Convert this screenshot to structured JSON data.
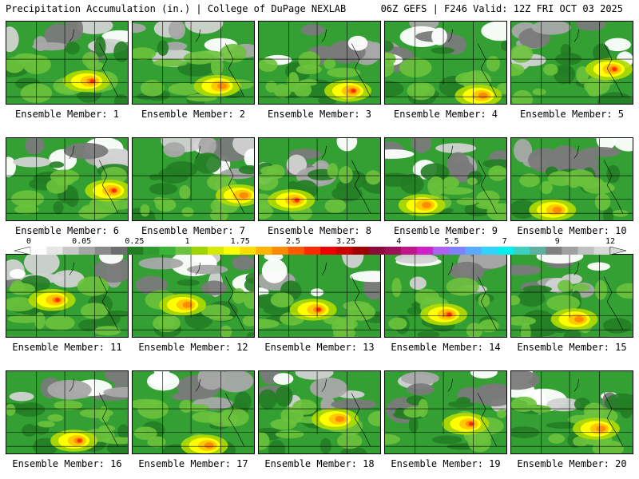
{
  "header": {
    "left": "Precipitation Accumulation (in.) | College of DuPage NEXLAB",
    "right": "06Z GEFS | F246 Valid: 12Z FRI OCT 03 2025"
  },
  "member_label_prefix": "Ensemble Member: ",
  "members": [
    {
      "id": 1,
      "label": "Ensemble Member: 1"
    },
    {
      "id": 2,
      "label": "Ensemble Member: 2"
    },
    {
      "id": 3,
      "label": "Ensemble Member: 3"
    },
    {
      "id": 4,
      "label": "Ensemble Member: 4"
    },
    {
      "id": 5,
      "label": "Ensemble Member: 5"
    },
    {
      "id": 6,
      "label": "Ensemble Member: 6"
    },
    {
      "id": 7,
      "label": "Ensemble Member: 7"
    },
    {
      "id": 8,
      "label": "Ensemble Member: 8"
    },
    {
      "id": 9,
      "label": "Ensemble Member: 9"
    },
    {
      "id": 10,
      "label": "Ensemble Member: 10"
    },
    {
      "id": 11,
      "label": "Ensemble Member: 11"
    },
    {
      "id": 12,
      "label": "Ensemble Member: 12"
    },
    {
      "id": 13,
      "label": "Ensemble Member: 13"
    },
    {
      "id": 14,
      "label": "Ensemble Member: 14"
    },
    {
      "id": 15,
      "label": "Ensemble Member: 15"
    },
    {
      "id": 16,
      "label": "Ensemble Member: 16"
    },
    {
      "id": 17,
      "label": "Ensemble Member: 17"
    },
    {
      "id": 18,
      "label": "Ensemble Member: 18"
    },
    {
      "id": 19,
      "label": "Ensemble Member: 19"
    },
    {
      "id": 20,
      "label": "Ensemble Member: 20"
    }
  ],
  "legend": {
    "ticks": [
      "0",
      "0.05",
      "0.25",
      "1",
      "1.75",
      "2.5",
      "3.25",
      "4",
      "5.5",
      "7",
      "9",
      "12"
    ],
    "colors": [
      "#ffffff",
      "#e6e6e6",
      "#c8c8c8",
      "#a6a6a6",
      "#8a8a8a",
      "#6e6e6e",
      "#227d22",
      "#2f9a2f",
      "#3cb43c",
      "#6cc23c",
      "#9ed400",
      "#d6ea00",
      "#ffff00",
      "#ffdd00",
      "#ffb400",
      "#ff8c00",
      "#ff5a00",
      "#ff2a00",
      "#ee0000",
      "#c80000",
      "#a00000",
      "#8b0a3a",
      "#a0105a",
      "#c0168a",
      "#d020c8",
      "#b060f0",
      "#8080ff",
      "#5aaaff",
      "#30d2ff",
      "#00f0f0",
      "#40d0c0",
      "#60b0a0",
      "#808080",
      "#a0a0a0",
      "#c0c0c0",
      "#d8d8d8"
    ]
  }
}
